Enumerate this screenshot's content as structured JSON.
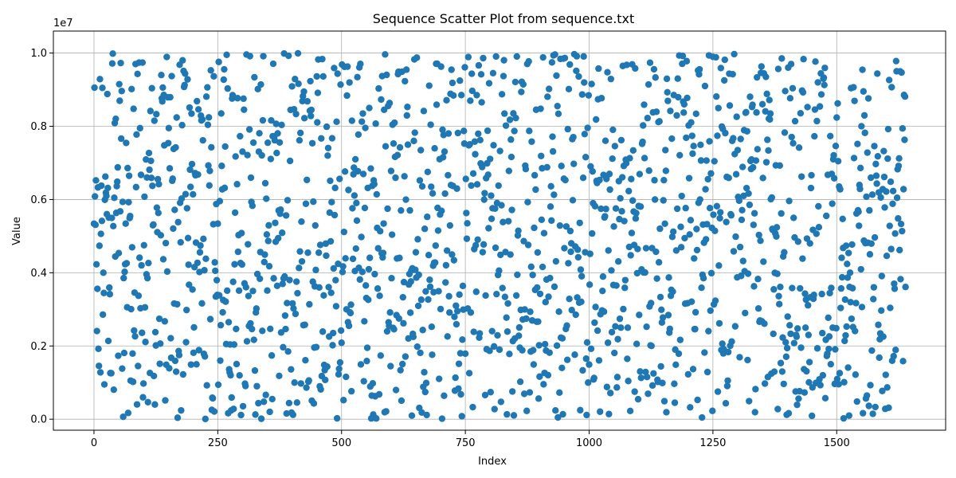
{
  "chart_data": {
    "type": "scatter",
    "title": "Sequence Scatter Plot from sequence.txt",
    "xlabel": "Index",
    "ylabel": "Value",
    "scale_exponent_label": "1e7",
    "xlim": [
      -82,
      1720
    ],
    "ylim": [
      -0.03,
      1.06
    ],
    "x_ticks": [
      0,
      250,
      500,
      750,
      1000,
      1250,
      1500
    ],
    "x_tick_labels": [
      "0",
      "250",
      "500",
      "750",
      "1000",
      "1250",
      "1500"
    ],
    "y_ticks": [
      0.0,
      0.2,
      0.4,
      0.6,
      0.8,
      1.0
    ],
    "y_tick_labels": [
      "0.0",
      "0.2",
      "0.4",
      "0.6",
      "0.8",
      "1.0"
    ],
    "grid": true,
    "point_color": "#1f77b4",
    "n_points": 1640,
    "value_seed": 20240611
  }
}
